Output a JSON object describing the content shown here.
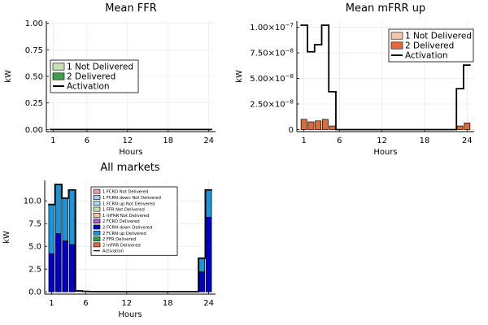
{
  "chart_data": [
    {
      "id": "ffr",
      "type": "bar",
      "title": "Mean FFR",
      "xlabel": "Hours",
      "ylabel": "kW",
      "xlim": [
        0,
        25
      ],
      "ylim": [
        -0.02,
        1.02
      ],
      "xticks": [
        1,
        6,
        12,
        18,
        24
      ],
      "yticks": [
        0.0,
        0.25,
        0.5,
        0.75,
        1.0
      ],
      "ytick_labels": [
        "0.00",
        "0.25",
        "0.50",
        "0.75",
        "1.00"
      ],
      "grid": true,
      "legend_position": "left",
      "stacked": true,
      "x": [
        1,
        2,
        3,
        4,
        5,
        6,
        7,
        8,
        9,
        10,
        11,
        12,
        13,
        14,
        15,
        16,
        17,
        18,
        19,
        20,
        21,
        22,
        23,
        24
      ],
      "series": [
        {
          "name": "1 Not Delivered",
          "kind": "bar",
          "color": "#c6e3b1",
          "values": [
            0,
            0,
            0,
            0,
            0,
            0,
            0,
            0,
            0,
            0,
            0,
            0,
            0,
            0,
            0,
            0,
            0,
            0,
            0,
            0,
            0,
            0,
            0,
            0
          ]
        },
        {
          "name": "2 Delivered",
          "kind": "bar",
          "color": "#3b9e4a",
          "values": [
            0,
            0,
            0,
            0,
            0,
            0,
            0,
            0,
            0,
            0,
            0,
            0,
            0,
            0,
            0,
            0,
            0,
            0,
            0,
            0,
            0,
            0,
            0,
            0
          ]
        },
        {
          "name": "Activation",
          "kind": "step",
          "color": "#000000",
          "values": [
            0,
            0,
            0,
            0,
            0,
            0,
            0,
            0,
            0,
            0,
            0,
            0,
            0,
            0,
            0,
            0,
            0,
            0,
            0,
            0,
            0,
            0,
            0,
            0
          ]
        }
      ]
    },
    {
      "id": "mfrr",
      "type": "bar",
      "title": "Mean mFRR up",
      "xlabel": "Hours",
      "ylabel": "kW",
      "xlim": [
        0,
        25
      ],
      "ylim": [
        -2e-09,
        1.06e-07
      ],
      "xticks": [
        1,
        6,
        12,
        18,
        24
      ],
      "yticks": [
        0,
        2.5e-08,
        5e-08,
        7.5e-08,
        1e-07
      ],
      "ytick_labels": [
        {
          "m": "0",
          "e": ""
        },
        {
          "m": "2.50×10",
          "e": "−8"
        },
        {
          "m": "5.00×10",
          "e": "−8"
        },
        {
          "m": "7.50×10",
          "e": "−8"
        },
        {
          "m": "1.00×10",
          "e": "−7"
        }
      ],
      "grid": true,
      "legend_position": "top-right",
      "stacked": true,
      "x": [
        1,
        2,
        3,
        4,
        5,
        6,
        7,
        8,
        9,
        10,
        11,
        12,
        13,
        14,
        15,
        16,
        17,
        18,
        19,
        20,
        21,
        22,
        23,
        24
      ],
      "series": [
        {
          "name": "1 Not Delivered",
          "kind": "bar",
          "color": "#f5c6ad",
          "values": [
            0,
            0,
            0,
            0,
            0,
            0,
            0,
            0,
            0,
            0,
            0,
            0,
            0,
            0,
            0,
            0,
            0,
            0,
            0,
            0,
            0,
            0,
            0,
            0
          ]
        },
        {
          "name": "2 Delivered",
          "kind": "bar",
          "color": "#e06a3c",
          "values": [
            1e-08,
            7.5e-09,
            8.5e-09,
            1e-08,
            3.5e-09,
            0,
            0,
            0,
            0,
            0,
            0,
            0,
            0,
            0,
            0,
            0,
            0,
            0,
            0,
            0,
            0,
            0,
            3.5e-09,
            6.5e-09
          ]
        },
        {
          "name": "Activation",
          "kind": "step",
          "color": "#000000",
          "values": [
            1.02e-07,
            7.6e-08,
            8.3e-08,
            1.02e-07,
            3.7e-08,
            0,
            0,
            0,
            0,
            0,
            0,
            0,
            0,
            0,
            0,
            0,
            0,
            0,
            0,
            0,
            0,
            0,
            4e-08,
            6.3e-08
          ]
        }
      ]
    },
    {
      "id": "all",
      "type": "bar",
      "title": "All markets",
      "xlabel": "Hours",
      "ylabel": "kW",
      "xlim": [
        0,
        25
      ],
      "ylim": [
        -0.25,
        12.25
      ],
      "xticks": [
        1,
        6,
        12,
        18,
        24
      ],
      "yticks": [
        0,
        2.5,
        5,
        7.5,
        10
      ],
      "ytick_labels": [
        "0.0",
        "2.5",
        "5.0",
        "7.5",
        "10.0"
      ],
      "grid": true,
      "legend_position": "top-right",
      "stacked": true,
      "x": [
        1,
        2,
        3,
        4,
        5,
        6,
        7,
        8,
        9,
        10,
        11,
        12,
        13,
        14,
        15,
        16,
        17,
        18,
        19,
        20,
        21,
        22,
        23,
        24
      ],
      "series": [
        {
          "name": "1 FCRD Not Delivered",
          "kind": "bar",
          "color": "#e8a0ab",
          "values": [
            0,
            0,
            0,
            0,
            0,
            0,
            0,
            0,
            0,
            0,
            0,
            0,
            0,
            0,
            0,
            0,
            0,
            0,
            0,
            0,
            0,
            0,
            0,
            0
          ]
        },
        {
          "name": "1 FCRN down Not Delivered",
          "kind": "bar",
          "color": "#a9c9e8",
          "values": [
            0,
            0,
            0,
            0,
            0,
            0,
            0,
            0,
            0,
            0,
            0,
            0,
            0,
            0,
            0,
            0,
            0,
            0,
            0,
            0,
            0,
            0,
            0,
            0
          ]
        },
        {
          "name": "1 FCRN up Not Delivered",
          "kind": "bar",
          "color": "#a6dff2",
          "values": [
            0,
            0,
            0,
            0,
            0,
            0,
            0,
            0,
            0,
            0,
            0,
            0,
            0,
            0,
            0,
            0,
            0,
            0,
            0,
            0,
            0,
            0,
            0,
            0
          ]
        },
        {
          "name": "1 FFR Not Delivered",
          "kind": "bar",
          "color": "#c6e3b1",
          "values": [
            0,
            0,
            0,
            0,
            0,
            0,
            0,
            0,
            0,
            0,
            0,
            0,
            0,
            0,
            0,
            0,
            0,
            0,
            0,
            0,
            0,
            0,
            0,
            0
          ]
        },
        {
          "name": "1 mFRR Not Delivered",
          "kind": "bar",
          "color": "#f5c6ad",
          "values": [
            0,
            0,
            0,
            0,
            0,
            0,
            0,
            0,
            0,
            0,
            0,
            0,
            0,
            0,
            0,
            0,
            0,
            0,
            0,
            0,
            0,
            0,
            0,
            0
          ]
        },
        {
          "name": "2 FCRD Delivered",
          "kind": "bar",
          "color": "#b65ccc",
          "values": [
            0,
            0,
            0,
            0,
            0,
            0,
            0,
            0,
            0,
            0,
            0,
            0,
            0,
            0,
            0,
            0,
            0,
            0,
            0,
            0,
            0,
            0,
            0,
            0
          ]
        },
        {
          "name": "2 FCRN down Delivered",
          "kind": "bar",
          "color": "#0000c8",
          "values": [
            4.2,
            6.4,
            5.6,
            5.2,
            0,
            0,
            0,
            0,
            0,
            0,
            0,
            0,
            0,
            0,
            0,
            0,
            0,
            0,
            0,
            0,
            0,
            0,
            2.2,
            8.2
          ]
        },
        {
          "name": "2 FCRN up Delivered",
          "kind": "bar",
          "color": "#1a96d8",
          "values": [
            5.4,
            5.4,
            4.7,
            6.0,
            0,
            0,
            0,
            0,
            0,
            0,
            0,
            0,
            0,
            0,
            0,
            0,
            0,
            0,
            0,
            0,
            0,
            0,
            1.5,
            3.0
          ]
        },
        {
          "name": "2 FFR Delivered",
          "kind": "bar",
          "color": "#3b9e4a",
          "values": [
            0,
            0,
            0,
            0,
            0,
            0,
            0,
            0,
            0,
            0,
            0,
            0,
            0,
            0,
            0,
            0,
            0,
            0,
            0,
            0,
            0,
            0,
            0,
            0
          ]
        },
        {
          "name": "2 mFRR Delivered",
          "kind": "bar",
          "color": "#e06a3c",
          "values": [
            0,
            0,
            0,
            0,
            0,
            0,
            0,
            0,
            0,
            0,
            0,
            0,
            0,
            0,
            0,
            0,
            0,
            0,
            0,
            0,
            0,
            0,
            0,
            0
          ]
        },
        {
          "name": "Activation",
          "kind": "step",
          "color": "#000000",
          "values": [
            9.6,
            11.8,
            10.3,
            11.2,
            0.1,
            0.05,
            0.03,
            0.02,
            0.02,
            0.02,
            0.02,
            0.02,
            0.02,
            0.02,
            0.02,
            0.02,
            0.02,
            0.02,
            0.02,
            0.02,
            0.02,
            0.02,
            3.7,
            11.2
          ]
        }
      ]
    }
  ]
}
